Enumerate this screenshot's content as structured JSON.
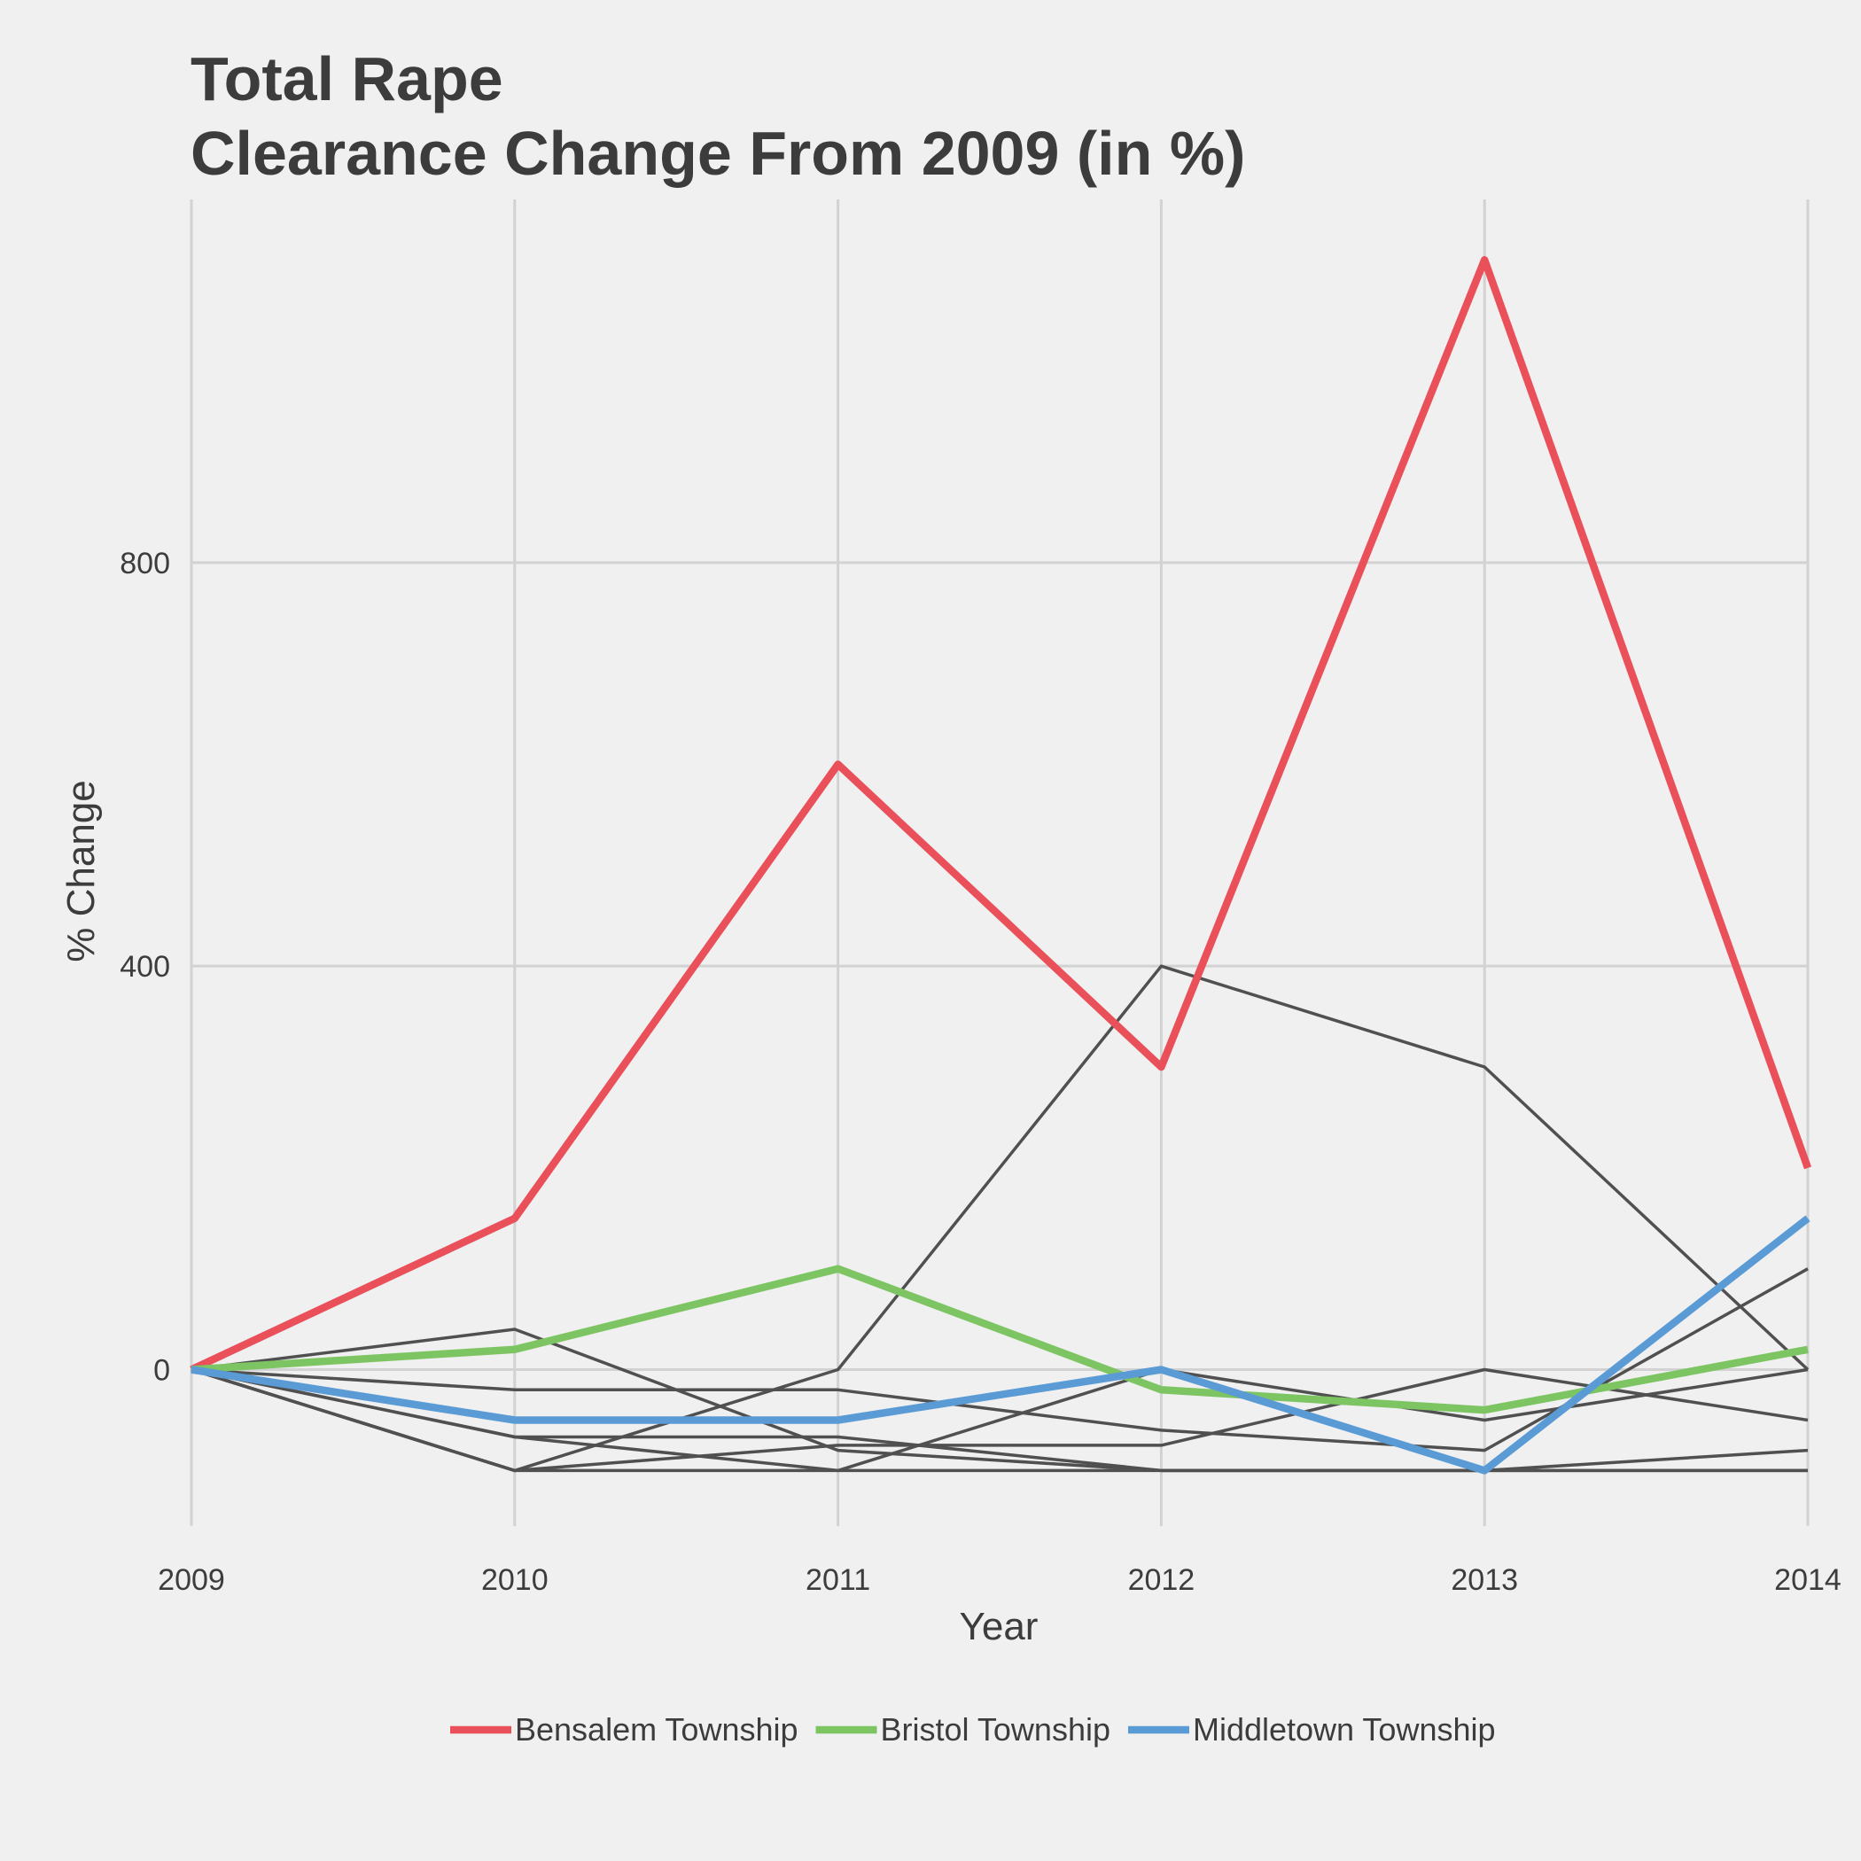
{
  "chart_data": {
    "type": "line",
    "title_line1": "Total Rape",
    "title_line2": "Clearance Change From 2009 (in %)",
    "xlabel": "Year",
    "ylabel": "% Change",
    "x": [
      2009,
      2010,
      2011,
      2012,
      2013,
      2014
    ],
    "x_tick_labels": [
      "2009",
      "2010",
      "2011",
      "2012",
      "2013",
      "2014"
    ],
    "y_ticks": [
      0,
      400,
      800
    ],
    "y_tick_labels": [
      "0",
      "400",
      "800"
    ],
    "ylim": [
      -155,
      1160
    ],
    "grid": true,
    "legend_position": "bottom",
    "series": [
      {
        "name": "Bensalem Township",
        "color": "#e9505a",
        "values": [
          0,
          150,
          600,
          300,
          1100,
          200
        ],
        "highlight": true
      },
      {
        "name": "Bristol Township",
        "color": "#7dc463",
        "values": [
          0,
          20,
          100,
          -20,
          -40,
          20
        ],
        "highlight": true
      },
      {
        "name": "Middletown Township",
        "color": "#5b9bd5",
        "values": [
          0,
          -50,
          -50,
          0,
          -100,
          150
        ],
        "highlight": true
      }
    ],
    "other_series_color": "#505050",
    "other_series": [
      [
        0,
        40,
        -80,
        -100,
        -100,
        -100
      ],
      [
        0,
        -100,
        0,
        400,
        300,
        0
      ],
      [
        0,
        -20,
        -20,
        -60,
        -80,
        100
      ],
      [
        0,
        -66.7,
        -66.7,
        -100,
        -100,
        -80
      ],
      [
        0,
        -100,
        -75,
        -75,
        0,
        -50
      ],
      [
        0,
        -66.7,
        -100,
        0,
        -50,
        0
      ],
      [
        0,
        -100,
        -100,
        -100,
        -100,
        -100
      ]
    ]
  }
}
